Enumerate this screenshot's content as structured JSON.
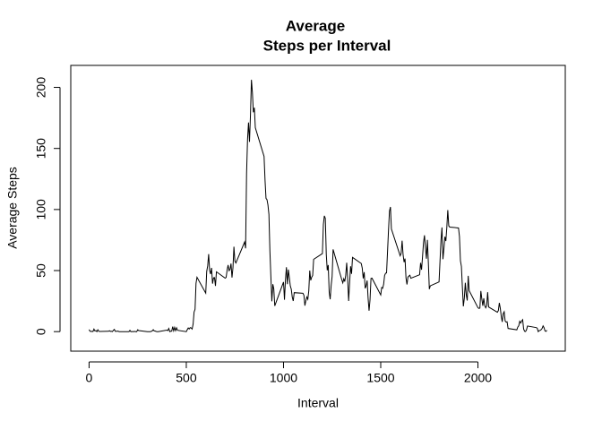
{
  "chart_data": {
    "type": "line",
    "title": [
      "Average",
      "Steps per Interval"
    ],
    "xlabel": "Interval",
    "ylabel": "Average Steps",
    "xlim": [
      -94.2,
      2449.2
    ],
    "xticks": [
      0,
      500,
      1000,
      1500,
      2000
    ],
    "ylim": [
      -16,
      218
    ],
    "yticks": [
      0,
      50,
      100,
      150,
      200
    ],
    "x": [
      0,
      5,
      10,
      15,
      20,
      25,
      30,
      35,
      40,
      45,
      50,
      55,
      100,
      105,
      110,
      115,
      120,
      125,
      130,
      135,
      140,
      145,
      150,
      155,
      200,
      205,
      210,
      215,
      220,
      225,
      230,
      235,
      240,
      245,
      250,
      255,
      300,
      305,
      310,
      315,
      320,
      325,
      330,
      335,
      340,
      345,
      350,
      355,
      400,
      405,
      410,
      415,
      420,
      425,
      430,
      435,
      440,
      445,
      450,
      455,
      500,
      505,
      510,
      515,
      520,
      525,
      530,
      535,
      540,
      545,
      550,
      555,
      600,
      605,
      610,
      615,
      620,
      625,
      630,
      635,
      640,
      645,
      650,
      655,
      700,
      705,
      710,
      715,
      720,
      725,
      730,
      735,
      740,
      745,
      750,
      755,
      800,
      805,
      810,
      815,
      820,
      825,
      830,
      835,
      840,
      845,
      850,
      855,
      900,
      905,
      910,
      915,
      920,
      925,
      930,
      935,
      940,
      945,
      950,
      955,
      1000,
      1005,
      1010,
      1015,
      1020,
      1025,
      1030,
      1035,
      1040,
      1045,
      1050,
      1055,
      1100,
      1105,
      1110,
      1115,
      1120,
      1125,
      1130,
      1135,
      1140,
      1145,
      1150,
      1155,
      1200,
      1205,
      1210,
      1215,
      1220,
      1225,
      1230,
      1235,
      1240,
      1245,
      1250,
      1255,
      1300,
      1305,
      1310,
      1315,
      1320,
      1325,
      1330,
      1335,
      1340,
      1345,
      1350,
      1355,
      1400,
      1405,
      1410,
      1415,
      1420,
      1425,
      1430,
      1435,
      1440,
      1445,
      1450,
      1455,
      1500,
      1505,
      1510,
      1515,
      1520,
      1525,
      1530,
      1535,
      1540,
      1545,
      1550,
      1555,
      1600,
      1605,
      1610,
      1615,
      1620,
      1625,
      1630,
      1635,
      1640,
      1645,
      1650,
      1655,
      1700,
      1705,
      1710,
      1715,
      1720,
      1725,
      1730,
      1735,
      1740,
      1745,
      1750,
      1755,
      1800,
      1805,
      1810,
      1815,
      1820,
      1825,
      1830,
      1835,
      1840,
      1845,
      1850,
      1855,
      1900,
      1905,
      1910,
      1915,
      1920,
      1925,
      1930,
      1935,
      1940,
      1945,
      1950,
      1955,
      2000,
      2005,
      2010,
      2015,
      2020,
      2025,
      2030,
      2035,
      2040,
      2045,
      2050,
      2055,
      2100,
      2105,
      2110,
      2115,
      2120,
      2125,
      2130,
      2135,
      2140,
      2145,
      2150,
      2155,
      2200,
      2205,
      2210,
      2215,
      2220,
      2225,
      2230,
      2235,
      2240,
      2245,
      2250,
      2255,
      2300,
      2305,
      2310,
      2315,
      2320,
      2325,
      2330,
      2335,
      2340,
      2345,
      2350,
      2355
    ],
    "series": [
      {
        "color": "#000000",
        "values": [
          1.7,
          0.3,
          0.1,
          0.2,
          0.1,
          2.1,
          0.5,
          0.9,
          0,
          1.5,
          0.3,
          0.1,
          0.3,
          0.7,
          0.2,
          0.3,
          0,
          1.1,
          1.8,
          0.2,
          0.2,
          0.4,
          0.3,
          0,
          0,
          0,
          1.1,
          0,
          0,
          0.1,
          0,
          0.2,
          0,
          0,
          1.5,
          0.9,
          0,
          0,
          0,
          0,
          0.2,
          0.6,
          1.6,
          0.6,
          0.5,
          0.1,
          0,
          0,
          1.2,
          0.9,
          2.6,
          0,
          0.3,
          0.4,
          4.1,
          0.7,
          3.5,
          0.8,
          3.1,
          1.1,
          0,
          1.6,
          3,
          2.2,
          3.3,
          3,
          2.1,
          6.1,
          16,
          18.3,
          39.5,
          44.5,
          31.5,
          49.3,
          53.8,
          63.5,
          50,
          47.1,
          52.2,
          39.3,
          44,
          44.2,
          37.4,
          49,
          43.8,
          44.4,
          50.5,
          54.5,
          49.9,
          51,
          55.7,
          44.3,
          52.3,
          69.5,
          57.8,
          56.2,
          73.4,
          68.2,
          129.4,
          157.5,
          171.2,
          155.4,
          177.3,
          206.2,
          195.9,
          179.6,
          183.4,
          167,
          143.5,
          124,
          109.1,
          108.1,
          103.7,
          96,
          66.2,
          45.2,
          24.8,
          38.8,
          35,
          21.1,
          40.6,
          26.1,
          42.4,
          52.7,
          38.9,
          50.8,
          44.3,
          37.4,
          34.7,
          28.3,
          25.1,
          31.9,
          31.4,
          29.7,
          21.3,
          25.5,
          28.4,
          26.5,
          33.4,
          50,
          42,
          44.6,
          46,
          59.2,
          63.9,
          87.7,
          94.8,
          92.8,
          63.4,
          50.2,
          54.5,
          32.4,
          26.5,
          37.7,
          45.1,
          67.3,
          42.3,
          39.9,
          43.3,
          41,
          46.2,
          56.4,
          42.8,
          25.1,
          40,
          53.5,
          47.3,
          60.8,
          55.8,
          52,
          43.6,
          48.7,
          35.5,
          37.5,
          41.8,
          27.5,
          17.1,
          26.1,
          43.6,
          43.8,
          30,
          36.1,
          35.5,
          38.8,
          46,
          47.8,
          48.1,
          65.3,
          82.9,
          98.7,
          102.1,
          84,
          62.1,
          64.1,
          74.5,
          63.2,
          56.9,
          59.8,
          43.9,
          38.6,
          44.7,
          45.5,
          46.2,
          43.7,
          46.6,
          56.3,
          50.7,
          61.2,
          72.7,
          78.9,
          68.9,
          59.7,
          75.1,
          56.5,
          34.8,
          37.5,
          40.7,
          58,
          74.7,
          85.3,
          59.3,
          67.8,
          77.7,
          74.2,
          85.3,
          99.5,
          86.6,
          85.6,
          84.9,
          77.8,
          58,
          53.4,
          36.3,
          20.7,
          27.4,
          40,
          30.2,
          25.5,
          45.7,
          33.5,
          19.6,
          19,
          19.3,
          33.3,
          26.8,
          21.2,
          27.3,
          21.3,
          19.5,
          21.3,
          32.3,
          20.2,
          15.9,
          17.2,
          23.5,
          19.2,
          12.5,
          8,
          14.7,
          16.3,
          8.7,
          7.8,
          8.1,
          2.6,
          1.5,
          3.7,
          4.8,
          8.5,
          7.1,
          8.7,
          9.8,
          2.2,
          0.3,
          0.1,
          1.6,
          4.6,
          3.3,
          2.8,
          0,
          0.8,
          1,
          1.6,
          2.6,
          4.7,
          3.3,
          0.6,
          0.2,
          1.1
        ]
      }
    ]
  }
}
